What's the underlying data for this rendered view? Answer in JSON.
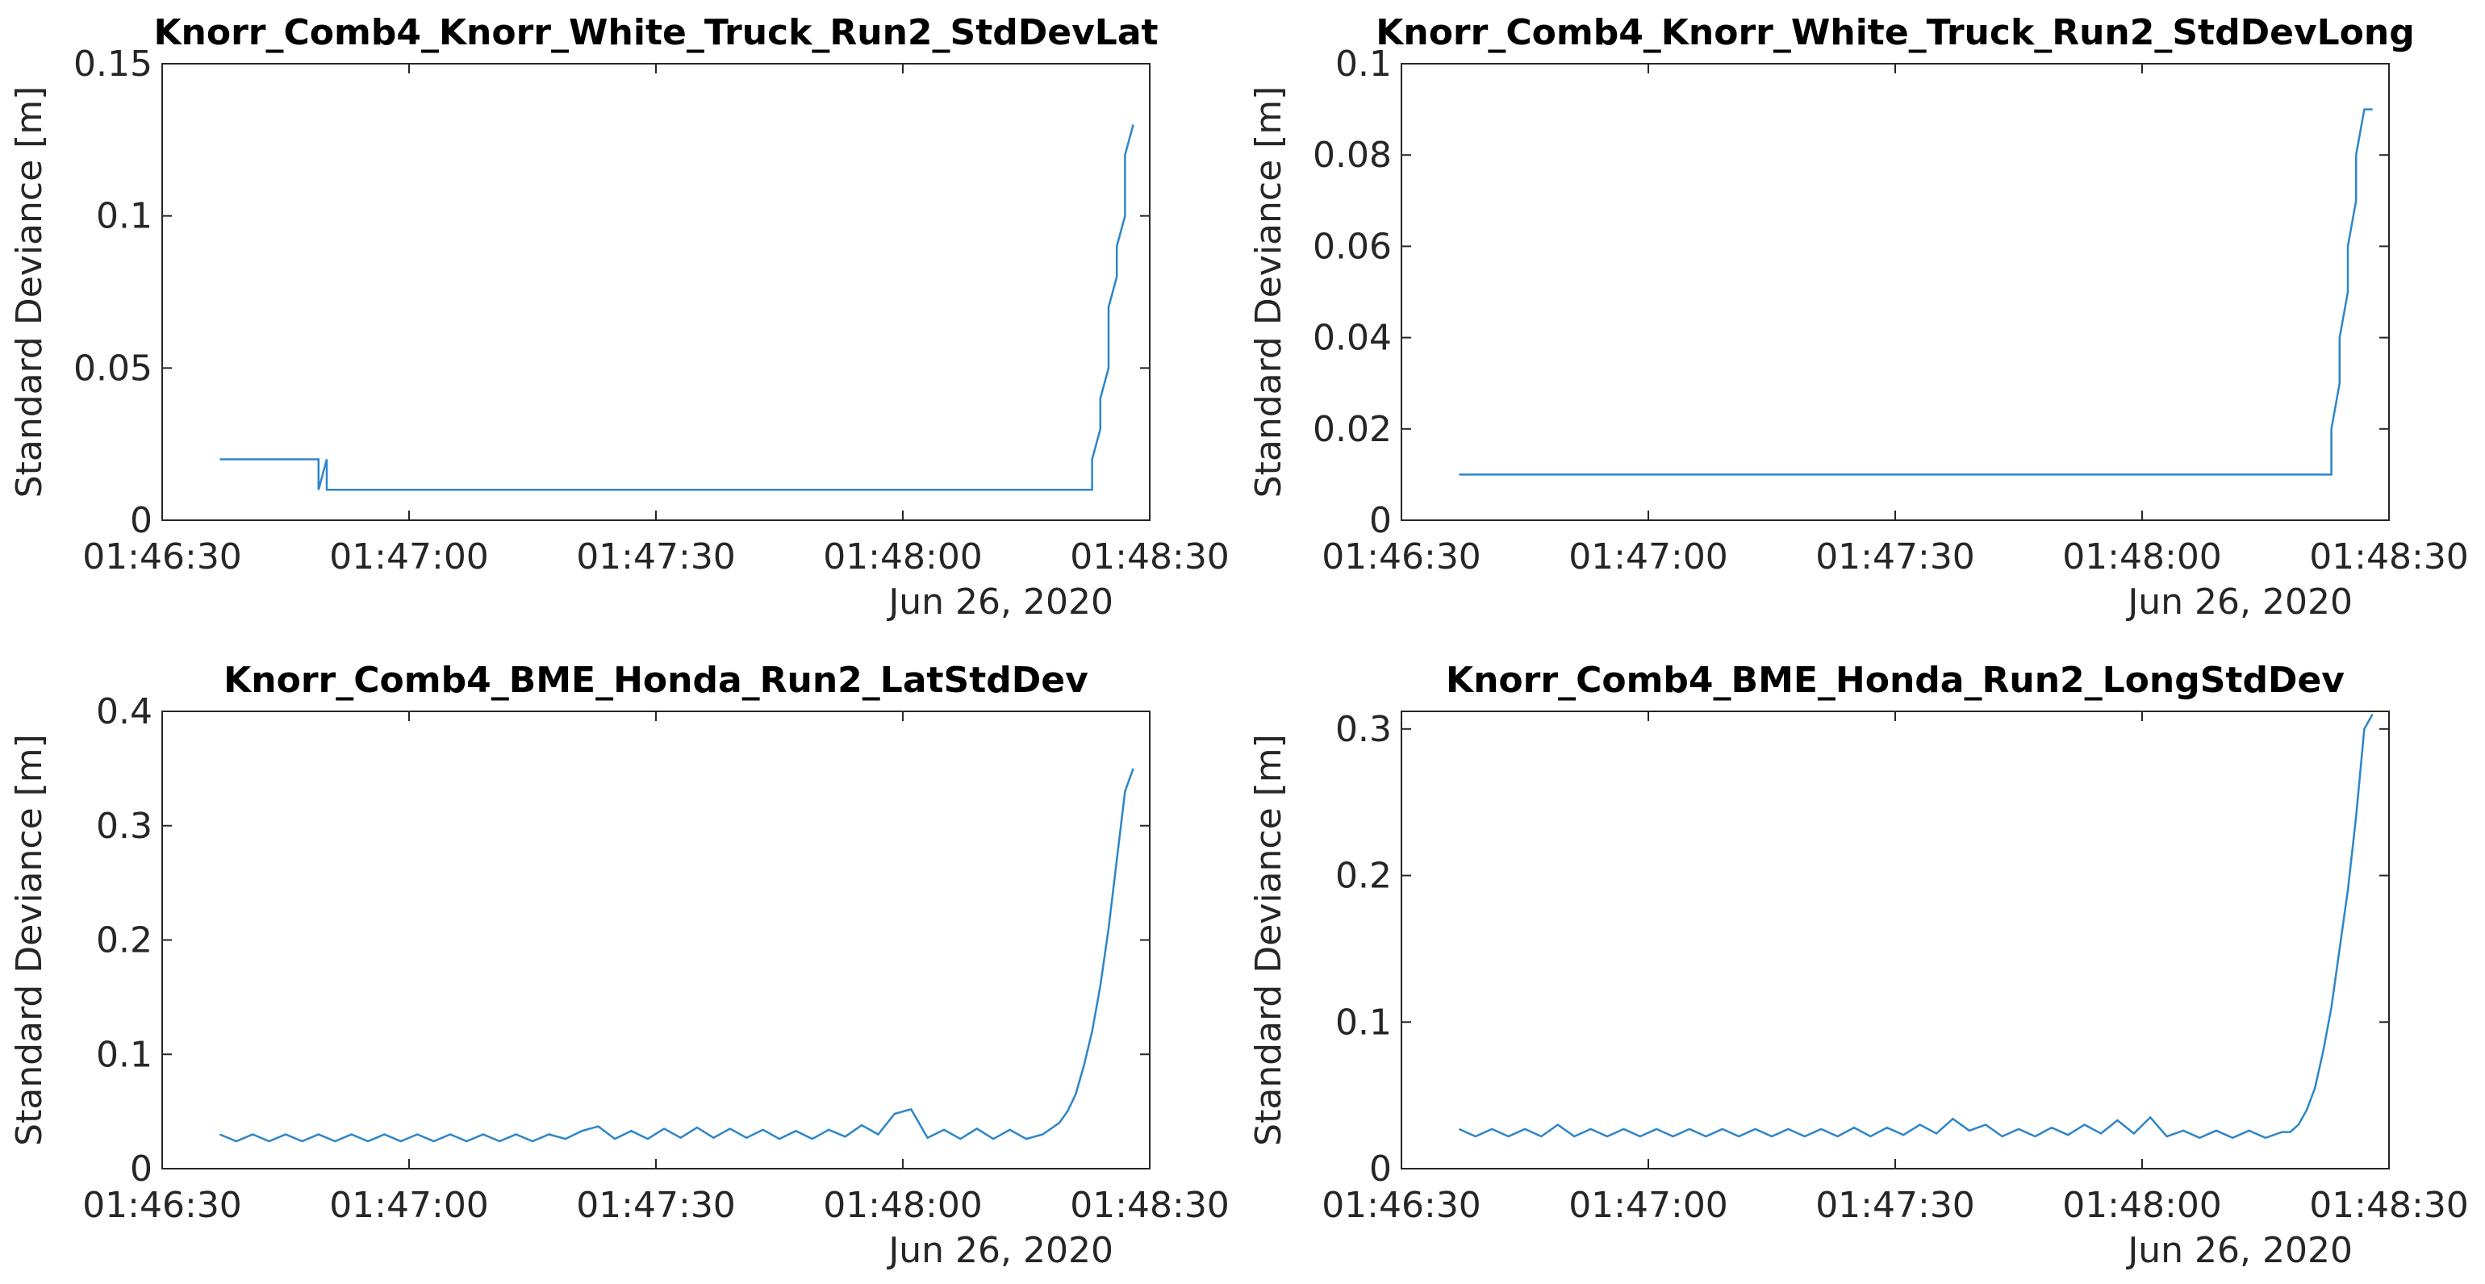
{
  "chart_data": [
    {
      "type": "line",
      "title": "Knorr_Comb4_Knorr_White_Truck_Run2_StdDevLat",
      "ylabel": "Standard Deviance [m]",
      "x_date_label": "Jun 26, 2020",
      "color": "#2e86c8",
      "x": [
        "01:46:37",
        "01:46:49",
        "01:46:49",
        "01:46:50",
        "01:46:50",
        "01:48:23",
        "01:48:23",
        "01:48:24",
        "01:48:24",
        "01:48:25",
        "01:48:25",
        "01:48:26",
        "01:48:26",
        "01:48:27",
        "01:48:27",
        "01:48:28"
      ],
      "values": [
        0.02,
        0.02,
        0.01,
        0.02,
        0.01,
        0.01,
        0.02,
        0.03,
        0.04,
        0.05,
        0.07,
        0.08,
        0.09,
        0.1,
        0.12,
        0.13
      ],
      "xlim": [
        "01:46:30",
        "01:48:30"
      ],
      "xticks": [
        "01:46:30",
        "01:47:00",
        "01:47:30",
        "01:48:00",
        "01:48:30"
      ],
      "ylim": [
        0,
        0.15
      ],
      "yticks": [
        0,
        0.05,
        0.1,
        0.15
      ]
    },
    {
      "type": "line",
      "title": "Knorr_Comb4_Knorr_White_Truck_Run2_StdDevLong",
      "ylabel": "Standard Deviance [m]",
      "x_date_label": "Jun 26, 2020",
      "color": "#2e86c8",
      "x": [
        "01:46:37",
        "01:48:23",
        "01:48:23",
        "01:48:24",
        "01:48:24",
        "01:48:25",
        "01:48:25",
        "01:48:26",
        "01:48:26",
        "01:48:27",
        "01:48:28"
      ],
      "values": [
        0.01,
        0.01,
        0.02,
        0.03,
        0.04,
        0.05,
        0.06,
        0.07,
        0.08,
        0.09,
        0.09
      ],
      "xlim": [
        "01:46:30",
        "01:48:30"
      ],
      "xticks": [
        "01:46:30",
        "01:47:00",
        "01:47:30",
        "01:48:00",
        "01:48:30"
      ],
      "ylim": [
        0,
        0.1
      ],
      "yticks": [
        0,
        0.02,
        0.04,
        0.06,
        0.08,
        0.1
      ]
    },
    {
      "type": "line",
      "title": "Knorr_Comb4_BME_Honda_Run2_LatStdDev",
      "ylabel": "Standard Deviance [m]",
      "x_date_label": "Jun 26, 2020",
      "color": "#2e86c8",
      "x": [
        "01:46:37",
        "01:46:39",
        "01:46:41",
        "01:46:43",
        "01:46:45",
        "01:46:47",
        "01:46:49",
        "01:46:51",
        "01:46:53",
        "01:46:55",
        "01:46:57",
        "01:46:59",
        "01:47:01",
        "01:47:03",
        "01:47:05",
        "01:47:07",
        "01:47:09",
        "01:47:11",
        "01:47:13",
        "01:47:15",
        "01:47:17",
        "01:47:19",
        "01:47:21",
        "01:47:23",
        "01:47:25",
        "01:47:27",
        "01:47:29",
        "01:47:31",
        "01:47:33",
        "01:47:35",
        "01:47:37",
        "01:47:39",
        "01:47:41",
        "01:47:43",
        "01:47:45",
        "01:47:47",
        "01:47:49",
        "01:47:51",
        "01:47:53",
        "01:47:55",
        "01:47:57",
        "01:47:59",
        "01:48:01",
        "01:48:03",
        "01:48:05",
        "01:48:07",
        "01:48:09",
        "01:48:11",
        "01:48:13",
        "01:48:15",
        "01:48:17",
        "01:48:19",
        "01:48:20",
        "01:48:21",
        "01:48:22",
        "01:48:23",
        "01:48:24",
        "01:48:25",
        "01:48:26",
        "01:48:27",
        "01:48:28"
      ],
      "values": [
        0.03,
        0.024,
        0.03,
        0.024,
        0.03,
        0.024,
        0.03,
        0.024,
        0.03,
        0.024,
        0.03,
        0.024,
        0.03,
        0.024,
        0.03,
        0.024,
        0.03,
        0.024,
        0.03,
        0.024,
        0.03,
        0.026,
        0.033,
        0.037,
        0.026,
        0.033,
        0.026,
        0.035,
        0.027,
        0.036,
        0.027,
        0.035,
        0.027,
        0.034,
        0.026,
        0.033,
        0.026,
        0.034,
        0.028,
        0.038,
        0.03,
        0.048,
        0.052,
        0.027,
        0.034,
        0.026,
        0.035,
        0.026,
        0.034,
        0.026,
        0.03,
        0.04,
        0.05,
        0.065,
        0.09,
        0.12,
        0.16,
        0.21,
        0.27,
        0.33,
        0.35
      ],
      "xlim": [
        "01:46:30",
        "01:48:30"
      ],
      "xticks": [
        "01:46:30",
        "01:47:00",
        "01:47:30",
        "01:48:00",
        "01:48:30"
      ],
      "ylim": [
        0,
        0.4
      ],
      "yticks": [
        0,
        0.1,
        0.2,
        0.3,
        0.4
      ]
    },
    {
      "type": "line",
      "title": "Knorr_Comb4_BME_Honda_Run2_LongStdDev",
      "ylabel": "Standard Deviance [m]",
      "x_date_label": "Jun 26, 2020",
      "color": "#2e86c8",
      "x": [
        "01:46:37",
        "01:46:39",
        "01:46:41",
        "01:46:43",
        "01:46:45",
        "01:46:47",
        "01:46:49",
        "01:46:51",
        "01:46:53",
        "01:46:55",
        "01:46:57",
        "01:46:59",
        "01:47:01",
        "01:47:03",
        "01:47:05",
        "01:47:07",
        "01:47:09",
        "01:47:11",
        "01:47:13",
        "01:47:15",
        "01:47:17",
        "01:47:19",
        "01:47:21",
        "01:47:23",
        "01:47:25",
        "01:47:27",
        "01:47:29",
        "01:47:31",
        "01:47:33",
        "01:47:35",
        "01:47:37",
        "01:47:39",
        "01:47:41",
        "01:47:43",
        "01:47:45",
        "01:47:47",
        "01:47:49",
        "01:47:51",
        "01:47:53",
        "01:47:55",
        "01:47:57",
        "01:47:59",
        "01:48:01",
        "01:48:03",
        "01:48:05",
        "01:48:07",
        "01:48:09",
        "01:48:11",
        "01:48:13",
        "01:48:15",
        "01:48:17",
        "01:48:18",
        "01:48:19",
        "01:48:20",
        "01:48:21",
        "01:48:22",
        "01:48:23",
        "01:48:24",
        "01:48:25",
        "01:48:26",
        "01:48:27",
        "01:48:28"
      ],
      "values": [
        0.027,
        0.022,
        0.027,
        0.022,
        0.027,
        0.022,
        0.03,
        0.022,
        0.027,
        0.022,
        0.027,
        0.022,
        0.027,
        0.022,
        0.027,
        0.022,
        0.027,
        0.022,
        0.027,
        0.022,
        0.027,
        0.022,
        0.027,
        0.022,
        0.028,
        0.022,
        0.028,
        0.023,
        0.03,
        0.024,
        0.034,
        0.026,
        0.03,
        0.022,
        0.027,
        0.022,
        0.028,
        0.023,
        0.03,
        0.024,
        0.033,
        0.024,
        0.035,
        0.022,
        0.026,
        0.021,
        0.026,
        0.021,
        0.026,
        0.021,
        0.025,
        0.025,
        0.03,
        0.04,
        0.055,
        0.08,
        0.11,
        0.15,
        0.19,
        0.24,
        0.3,
        0.31
      ],
      "xlim": [
        "01:46:30",
        "01:48:30"
      ],
      "xticks": [
        "01:46:30",
        "01:47:00",
        "01:47:30",
        "01:48:00",
        "01:48:30"
      ],
      "ylim": [
        0,
        0.312
      ],
      "yticks": [
        0,
        0.1,
        0.2,
        0.3
      ]
    }
  ]
}
